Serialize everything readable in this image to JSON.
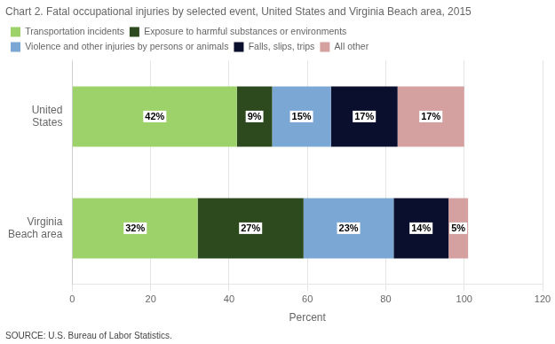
{
  "chart_data": {
    "type": "bar",
    "orientation": "horizontal",
    "stacked": true,
    "title": "Chart 2. Fatal occupational injuries by selected event, United States and Virginia Beach area, 2015",
    "categories": [
      "United\nStates",
      "Virginia\nBeach area"
    ],
    "series": [
      {
        "name": "Transportation incidents",
        "color": "#9dd16a",
        "values": [
          42,
          32
        ],
        "value_labels": [
          "42%",
          "32%"
        ]
      },
      {
        "name": "Exposure to harmful substances or environments",
        "color": "#2d4a1e",
        "values": [
          9,
          27
        ],
        "value_labels": [
          "9%",
          "27%"
        ]
      },
      {
        "name": "Violence and other injuries by persons or animals",
        "color": "#7ba7d4",
        "values": [
          15,
          23
        ],
        "value_labels": [
          "15%",
          "23%"
        ]
      },
      {
        "name": "Falls, slips, trips",
        "color": "#0b0f2e",
        "values": [
          17,
          14
        ],
        "value_labels": [
          "17%",
          "14%"
        ]
      },
      {
        "name": "All other",
        "color": "#d4a0a0",
        "values": [
          17,
          5
        ],
        "value_labels": [
          "17%",
          "5%"
        ]
      }
    ],
    "xlabel": "Percent",
    "xlim": [
      0,
      120
    ],
    "xticks": [
      0,
      20,
      40,
      60,
      80,
      100,
      120
    ],
    "grid": true,
    "legend": "top",
    "data_labels": true,
    "source": "SOURCE: U.S. Bureau of Labor Statistics."
  }
}
